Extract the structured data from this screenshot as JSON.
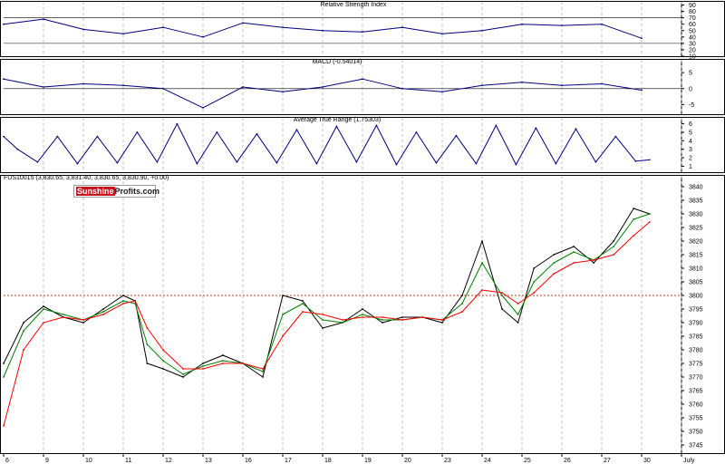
{
  "logo": {
    "part1": "Sunshine",
    "part2": "Profits.com"
  },
  "colors": {
    "indicator": "#00007f",
    "price": "#000000",
    "ma_fast": "#008000",
    "ma_slow": "#ff0000",
    "signal": "#cc0000",
    "grid": "#b4b4b4",
    "ref_line": "#c04020"
  },
  "x_axis": {
    "labels": [
      "6",
      "9",
      "10",
      "11",
      "12",
      "13",
      "16",
      "17",
      "18",
      "19",
      "20",
      "23",
      "24",
      "25",
      "26",
      "27",
      "30",
      "July"
    ]
  },
  "chart_data": [
    {
      "type": "line",
      "title": "Relative Strength Index",
      "ylim": [
        10,
        95
      ],
      "yticks": [
        10,
        20,
        30,
        40,
        50,
        60,
        70,
        80,
        90
      ],
      "reference_lines": [
        30,
        70
      ],
      "series": [
        {
          "x": [
            0,
            1,
            2,
            3,
            4,
            5,
            6,
            7,
            8,
            9,
            10,
            11,
            12,
            13,
            14,
            15,
            16
          ],
          "values": [
            60,
            68,
            52,
            45,
            55,
            40,
            62,
            55,
            50,
            48,
            55,
            45,
            50,
            60,
            58,
            60,
            38
          ]
        }
      ]
    },
    {
      "type": "line",
      "title": "MACD (-0.54014)",
      "ylim": [
        -8,
        9
      ],
      "yticks": [
        -5,
        0,
        5
      ],
      "reference_lines": [
        0
      ],
      "series": [
        {
          "x": [
            0,
            1,
            2,
            3,
            4,
            5,
            6,
            7,
            8,
            9,
            10,
            11,
            12,
            13,
            14,
            15,
            16
          ],
          "values": [
            3,
            0.5,
            1.5,
            1,
            0,
            -6,
            0.5,
            -1,
            0.5,
            3,
            0,
            -1,
            1,
            2,
            1,
            1.5,
            -0.5
          ]
        }
      ]
    },
    {
      "type": "line",
      "title": "Average True Range (1.75303)",
      "ylim": [
        0.3,
        6.7
      ],
      "yticks": [
        1,
        2,
        3,
        4,
        5,
        6
      ],
      "series": [
        {
          "x": [
            0,
            0.35,
            0.85,
            1.35,
            1.85,
            2.35,
            2.85,
            3.35,
            3.85,
            4.35,
            4.85,
            5.35,
            5.85,
            6.35,
            6.85,
            7.35,
            7.85,
            8.35,
            8.85,
            9.35,
            9.85,
            10.35,
            10.85,
            11.35,
            11.85,
            12.35,
            12.85,
            13.35,
            13.85,
            14.35,
            14.85,
            15.35,
            15.85,
            16.2
          ],
          "values": [
            4.5,
            3,
            1.5,
            4.5,
            1.3,
            4.5,
            1.4,
            5,
            1.5,
            6,
            1.3,
            5,
            1.5,
            4.8,
            1.4,
            5.3,
            1.3,
            5.7,
            1.5,
            5.8,
            1.2,
            5,
            1.4,
            4.6,
            1.3,
            5.8,
            1.2,
            5.5,
            1.3,
            5.4,
            1.5,
            4.5,
            1.6,
            1.75
          ]
        }
      ]
    },
    {
      "type": "line",
      "title": "FUS10015 (3,830.65, 3,831.40, 3,830.65, 3,830.90, +0.00)",
      "ylim": [
        3742,
        3844
      ],
      "yticks": [
        3745,
        3750,
        3755,
        3760,
        3765,
        3770,
        3775,
        3780,
        3785,
        3790,
        3795,
        3800,
        3805,
        3810,
        3815,
        3820,
        3825,
        3830,
        3835,
        3840
      ],
      "reference_lines": [
        3800
      ],
      "series": [
        {
          "x": [
            0,
            0.5,
            1,
            1.5,
            2,
            2.5,
            3,
            3.3,
            3.6,
            4,
            4.5,
            5,
            5.5,
            6,
            6.5,
            7,
            7.5,
            8,
            8.5,
            9,
            9.5,
            10,
            10.5,
            11,
            11.5,
            12,
            12.5,
            12.9,
            13.3,
            13.8,
            14.3,
            14.8,
            15.3,
            15.8,
            16.2
          ],
          "values": [
            3775,
            3790,
            3796,
            3792,
            3790,
            3795,
            3800,
            3798,
            3775,
            3773,
            3770,
            3775,
            3778,
            3775,
            3770,
            3800,
            3798,
            3788,
            3790,
            3795,
            3790,
            3792,
            3792,
            3790,
            3800,
            3820,
            3795,
            3790,
            3810,
            3815,
            3818,
            3812,
            3820,
            3832,
            3830
          ]
        },
        {
          "x": [
            0,
            0.5,
            1,
            1.5,
            2,
            2.5,
            3,
            3.3,
            3.6,
            4,
            4.5,
            5,
            5.5,
            6,
            6.5,
            7,
            7.5,
            8,
            8.5,
            9,
            9.5,
            10,
            10.5,
            11,
            11.5,
            12,
            12.5,
            12.9,
            13.3,
            13.8,
            14.3,
            14.8,
            15.3,
            15.8,
            16.2
          ],
          "values": [
            3770,
            3787,
            3795,
            3793,
            3791,
            3794,
            3798,
            3797,
            3782,
            3776,
            3771,
            3774,
            3776,
            3775,
            3772,
            3793,
            3797,
            3791,
            3790,
            3793,
            3791,
            3791,
            3792,
            3791,
            3797,
            3812,
            3800,
            3793,
            3805,
            3812,
            3816,
            3813,
            3818,
            3828,
            3830
          ]
        },
        {
          "x": [
            0,
            0.5,
            1,
            1.5,
            2,
            2.5,
            3,
            3.3,
            3.6,
            4,
            4.5,
            5,
            5.5,
            6,
            6.5,
            7,
            7.5,
            8,
            8.5,
            9,
            9.5,
            10,
            10.5,
            11,
            11.5,
            12,
            12.5,
            12.9,
            13.3,
            13.8,
            14.3,
            14.8,
            15.3,
            15.8,
            16.2
          ],
          "values": [
            3752,
            3780,
            3790,
            3792,
            3791,
            3793,
            3797,
            3798,
            3788,
            3780,
            3773,
            3773,
            3775,
            3775,
            3773,
            3785,
            3794,
            3793,
            3791,
            3792,
            3792,
            3791,
            3792,
            3791,
            3794,
            3802,
            3801,
            3797,
            3801,
            3808,
            3812,
            3813,
            3815,
            3822,
            3827
          ]
        }
      ]
    }
  ]
}
